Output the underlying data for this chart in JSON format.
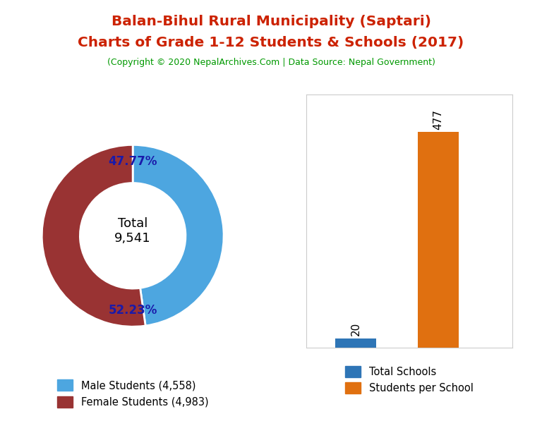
{
  "title_line1": "Balan-Bihul Rural Municipality (Saptari)",
  "title_line2": "Charts of Grade 1-12 Students & Schools (2017)",
  "subtitle": "(Copyright © 2020 NepalArchives.Com | Data Source: Nepal Government)",
  "title_color": "#cc2200",
  "subtitle_color": "#009900",
  "male_students": 4558,
  "female_students": 4983,
  "total_students": 9541,
  "male_pct": 47.77,
  "female_pct": 52.23,
  "male_color": "#4da6e0",
  "female_color": "#993333",
  "total_schools": 20,
  "students_per_school": 477,
  "bar_school_color": "#2e75b6",
  "bar_sps_color": "#e07010",
  "legend_male_label": "Male Students (4,558)",
  "legend_female_label": "Female Students (4,983)",
  "legend_schools_label": "Total Schools",
  "legend_sps_label": "Students per School",
  "donut_pct_color": "#1a1aaa",
  "center_label": "Total\n9,541"
}
